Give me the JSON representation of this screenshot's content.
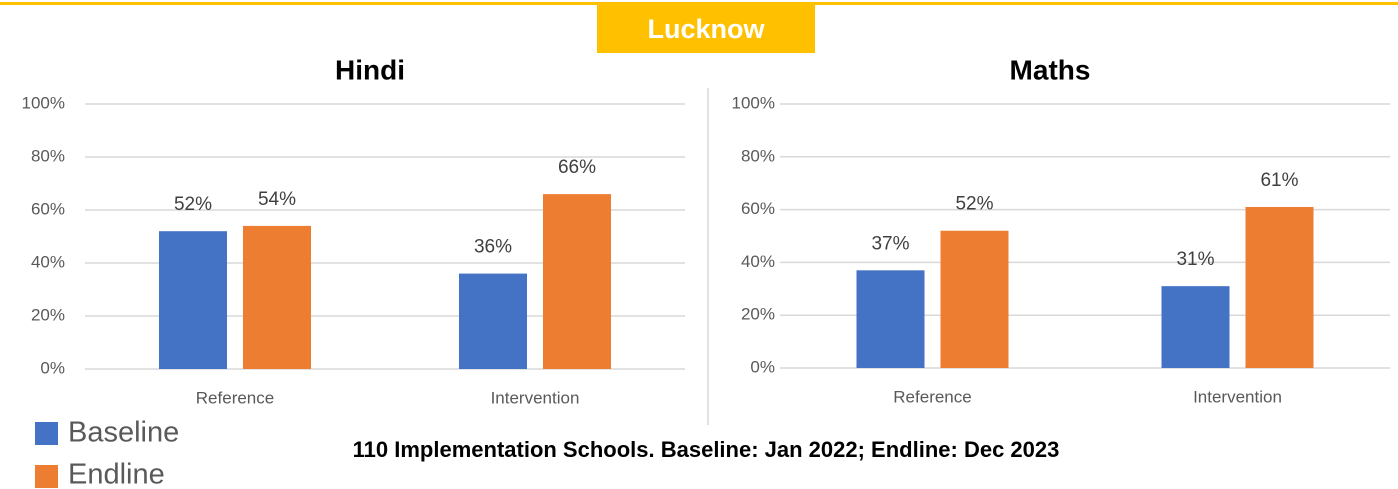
{
  "header": {
    "title": "Lucknow"
  },
  "footnote": "110 Implementation Schools. Baseline: Jan 2022; Endline: Dec 2023",
  "chart_data": [
    {
      "type": "bar",
      "title": "Hindi",
      "categories": [
        "Reference",
        "Intervention"
      ],
      "series": [
        {
          "name": "Baseline",
          "color": "#4472c4",
          "values": [
            52,
            36
          ],
          "value_labels": [
            "52%",
            "36%"
          ]
        },
        {
          "name": "Endline",
          "color": "#ed7d31",
          "values": [
            54,
            66
          ],
          "value_labels": [
            "54%",
            "66%"
          ]
        }
      ],
      "ylim": [
        0,
        100
      ],
      "yticks": [
        {
          "value": 0,
          "label": "0%"
        },
        {
          "value": 20,
          "label": "20%"
        },
        {
          "value": 40,
          "label": "40%"
        },
        {
          "value": 60,
          "label": "60%"
        },
        {
          "value": 80,
          "label": "80%"
        },
        {
          "value": 100,
          "label": "100%"
        }
      ],
      "grid": true
    },
    {
      "type": "bar",
      "title": "Maths",
      "categories": [
        "Reference",
        "Intervention"
      ],
      "series": [
        {
          "name": "Baseline",
          "color": "#4472c4",
          "values": [
            37,
            31
          ],
          "value_labels": [
            "37%",
            "31%"
          ]
        },
        {
          "name": "Endline",
          "color": "#ed7d31",
          "values": [
            52,
            61
          ],
          "value_labels": [
            "52%",
            "61%"
          ]
        }
      ],
      "ylim": [
        0,
        100
      ],
      "yticks": [
        {
          "value": 0,
          "label": "0%"
        },
        {
          "value": 20,
          "label": "20%"
        },
        {
          "value": 40,
          "label": "40%"
        },
        {
          "value": 60,
          "label": "60%"
        },
        {
          "value": 80,
          "label": "80%"
        },
        {
          "value": 100,
          "label": "100%"
        }
      ],
      "grid": true
    }
  ]
}
